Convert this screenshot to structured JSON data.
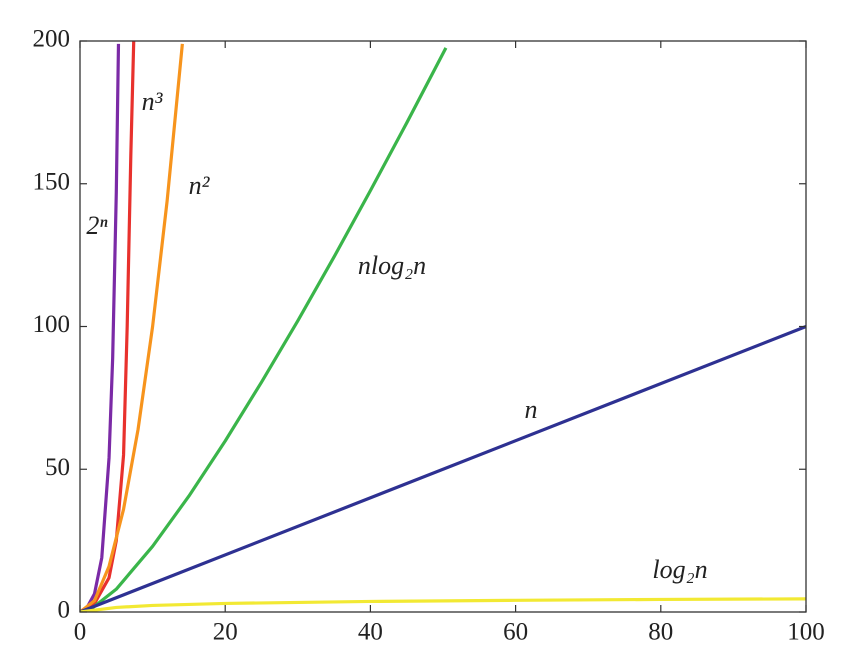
{
  "chart_data": {
    "type": "line",
    "xlim": [
      0,
      100
    ],
    "ylim": [
      0,
      200
    ],
    "xticks": [
      0,
      20,
      40,
      60,
      80,
      100
    ],
    "yticks": [
      0,
      50,
      100,
      150,
      200
    ],
    "grid": false,
    "series": [
      {
        "name": "2ⁿ",
        "color": "#7b2aa6",
        "x": [
          0,
          1,
          2,
          3,
          4,
          4.5,
          5,
          5.3
        ],
        "values": [
          0,
          1.7,
          6.4,
          19,
          54,
          89,
          147,
          199
        ]
      },
      {
        "name": "n³",
        "color": "#e8312d",
        "x": [
          0,
          2,
          4,
          5,
          6,
          6.5,
          7,
          7.4
        ],
        "values": [
          0,
          3,
          12,
          25,
          55,
          100,
          160,
          200
        ]
      },
      {
        "name": "n²",
        "color": "#f7941d",
        "x": [
          0,
          2,
          4,
          6,
          8,
          10,
          12,
          14.1
        ],
        "values": [
          0,
          4,
          16,
          36,
          64,
          100,
          144,
          199
        ]
      },
      {
        "name": "nlog₂n",
        "color": "#3ab54a",
        "x": [
          0,
          1,
          5,
          10,
          15,
          20,
          25,
          30,
          35,
          40,
          45,
          50.4
        ],
        "values": [
          0,
          0,
          8,
          23,
          40.6,
          59.9,
          80.5,
          102,
          124.4,
          147.6,
          171.3,
          197.6
        ]
      },
      {
        "name": "n",
        "color": "#2e3192",
        "x": [
          0,
          100
        ],
        "values": [
          0,
          100
        ]
      },
      {
        "name": "log₂n",
        "color": "#f2e933",
        "x": [
          0,
          5,
          10,
          20,
          40,
          60,
          80,
          100
        ],
        "values": [
          0,
          1.6,
          2.3,
          3.0,
          3.7,
          4.1,
          4.4,
          4.6
        ]
      }
    ]
  }
}
